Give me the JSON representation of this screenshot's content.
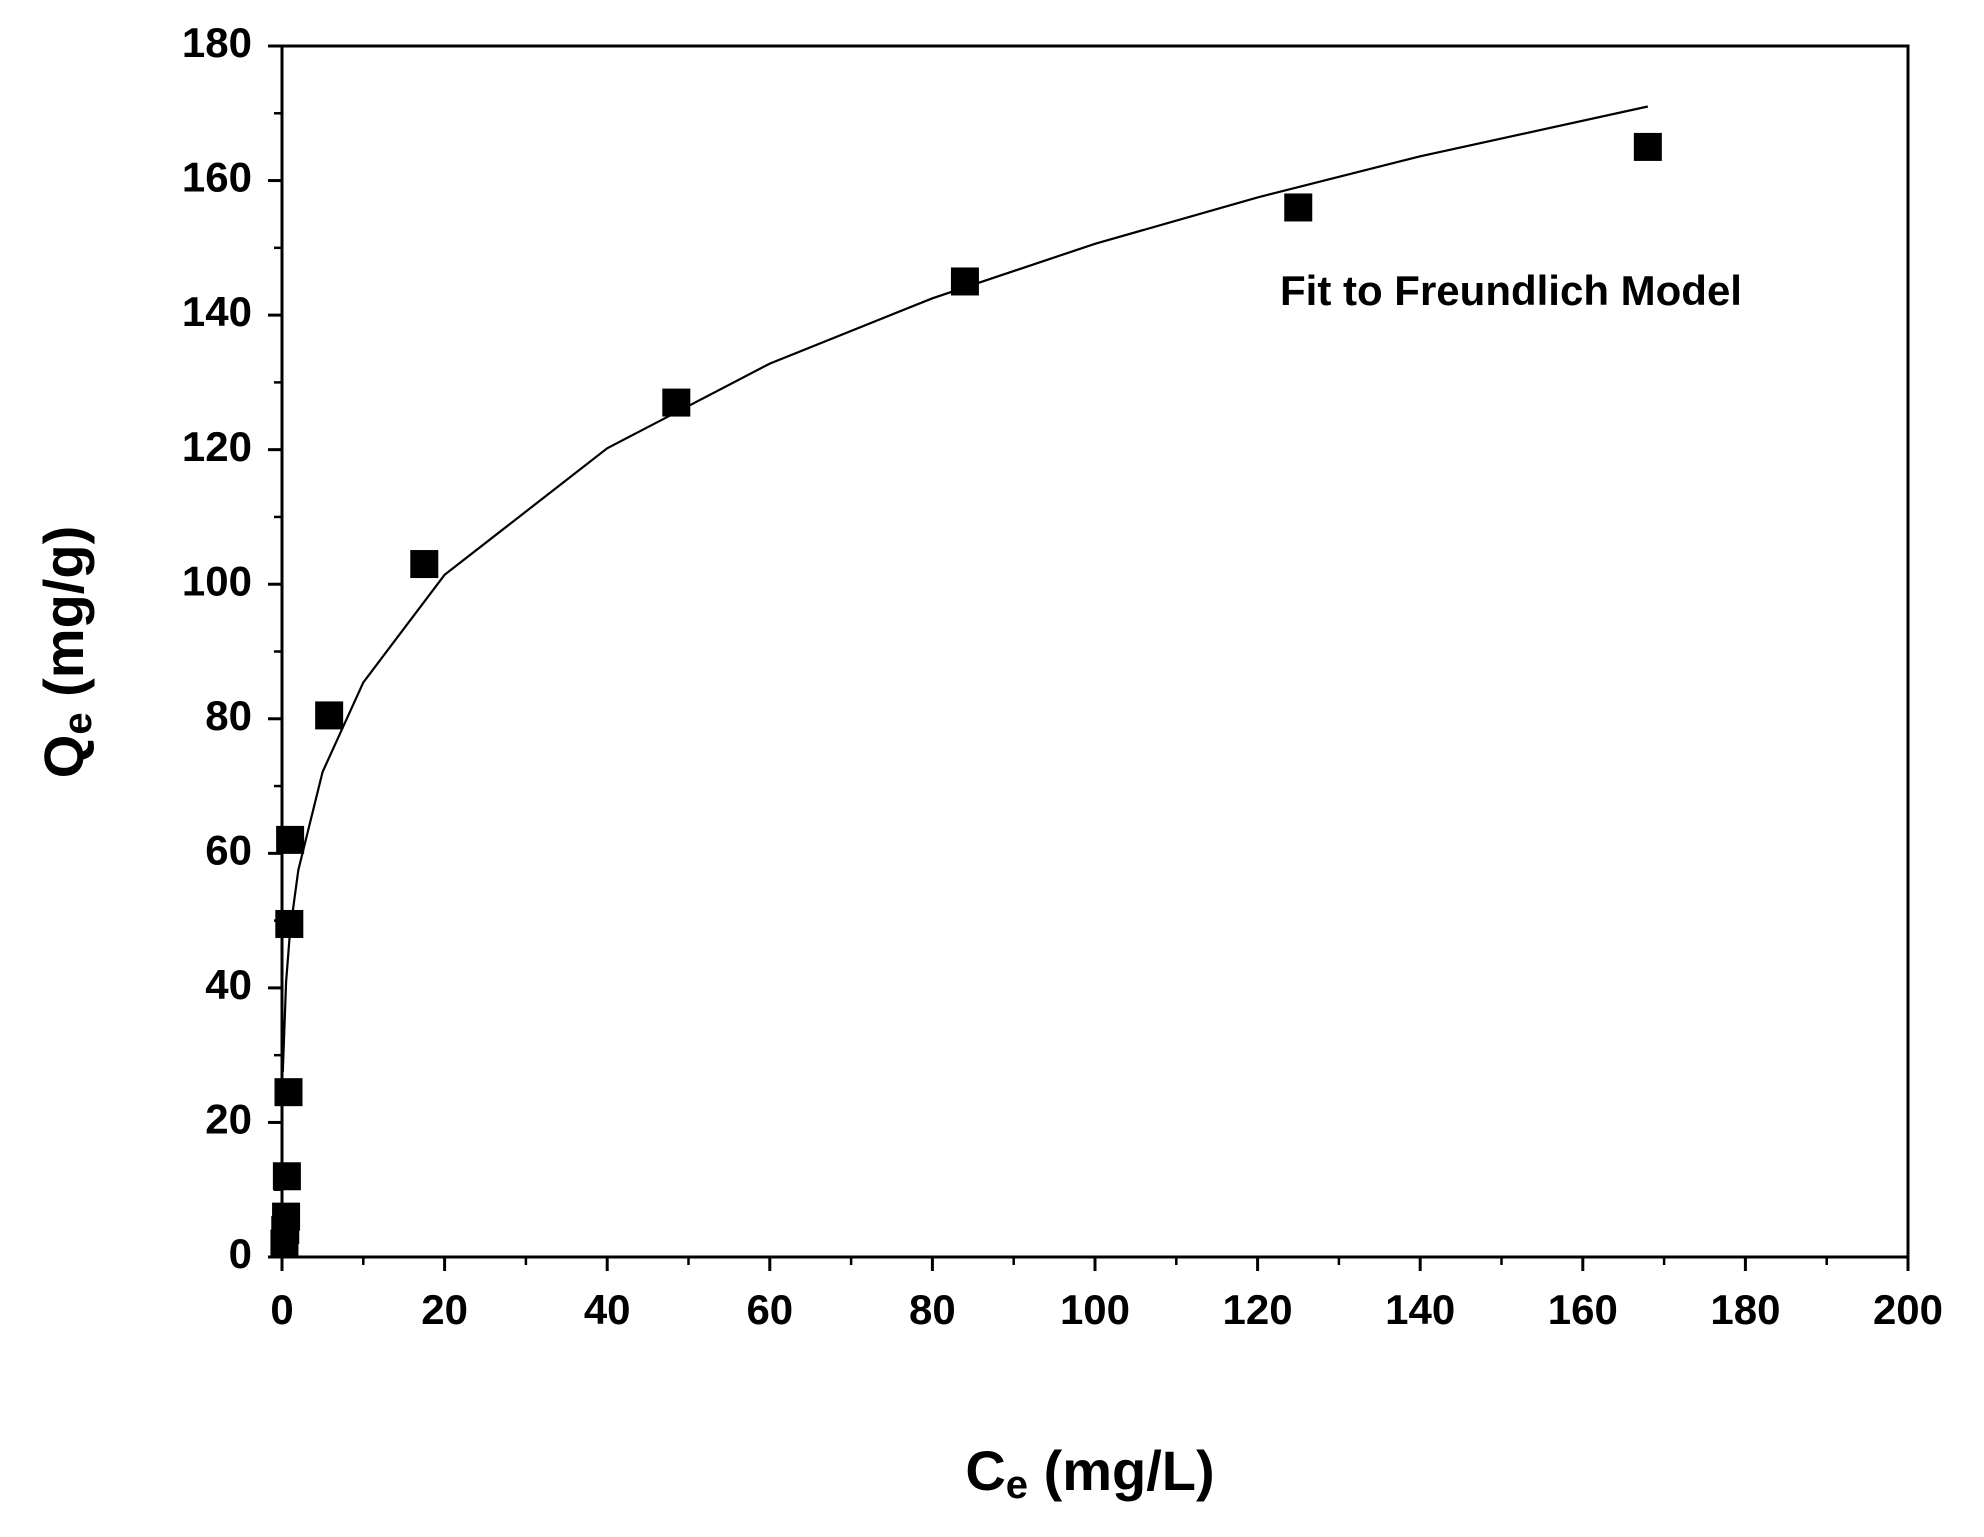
{
  "chart_data": {
    "type": "scatter",
    "x_label": {
      "main": "C",
      "sub": "e",
      "rest": " (mg/L)"
    },
    "y_label": {
      "main": "Q",
      "sub": "e",
      "rest": " (mg/g)"
    },
    "annotation": "Fit to Freundlich Model",
    "xlim": [
      0,
      200
    ],
    "ylim": [
      0,
      180
    ],
    "xticks": [
      0,
      20,
      40,
      60,
      80,
      100,
      120,
      140,
      160,
      180,
      200
    ],
    "yticks": [
      0,
      20,
      40,
      60,
      80,
      100,
      120,
      140,
      160,
      180
    ],
    "xminorticks": [
      10,
      30,
      50,
      70,
      90,
      110,
      130,
      150,
      170,
      190
    ],
    "yminorticks": [
      10,
      30,
      50,
      70,
      90,
      110,
      130,
      150,
      170
    ],
    "grid": false,
    "series": [
      {
        "style": "markers",
        "color": "#000000",
        "x": [
          0.3,
          0.4,
          0.5,
          0.6,
          0.8,
          0.9,
          1,
          5.8,
          17.5,
          48.5,
          84,
          125,
          168
        ],
        "values": [
          2,
          4,
          6,
          12,
          24.5,
          49.5,
          62,
          80.5,
          103,
          127,
          145,
          156,
          165
        ]
      },
      {
        "style": "line",
        "color": "#000000",
        "x": [
          0.1,
          0.5,
          1,
          2,
          5,
          10,
          20,
          40,
          60,
          80,
          100,
          120,
          140,
          168
        ],
        "values": [
          27.5,
          40.9,
          48.5,
          57.5,
          72.1,
          85.4,
          101.4,
          120.2,
          132.8,
          142.5,
          150.6,
          157.5,
          163.6,
          171
        ]
      }
    ]
  }
}
